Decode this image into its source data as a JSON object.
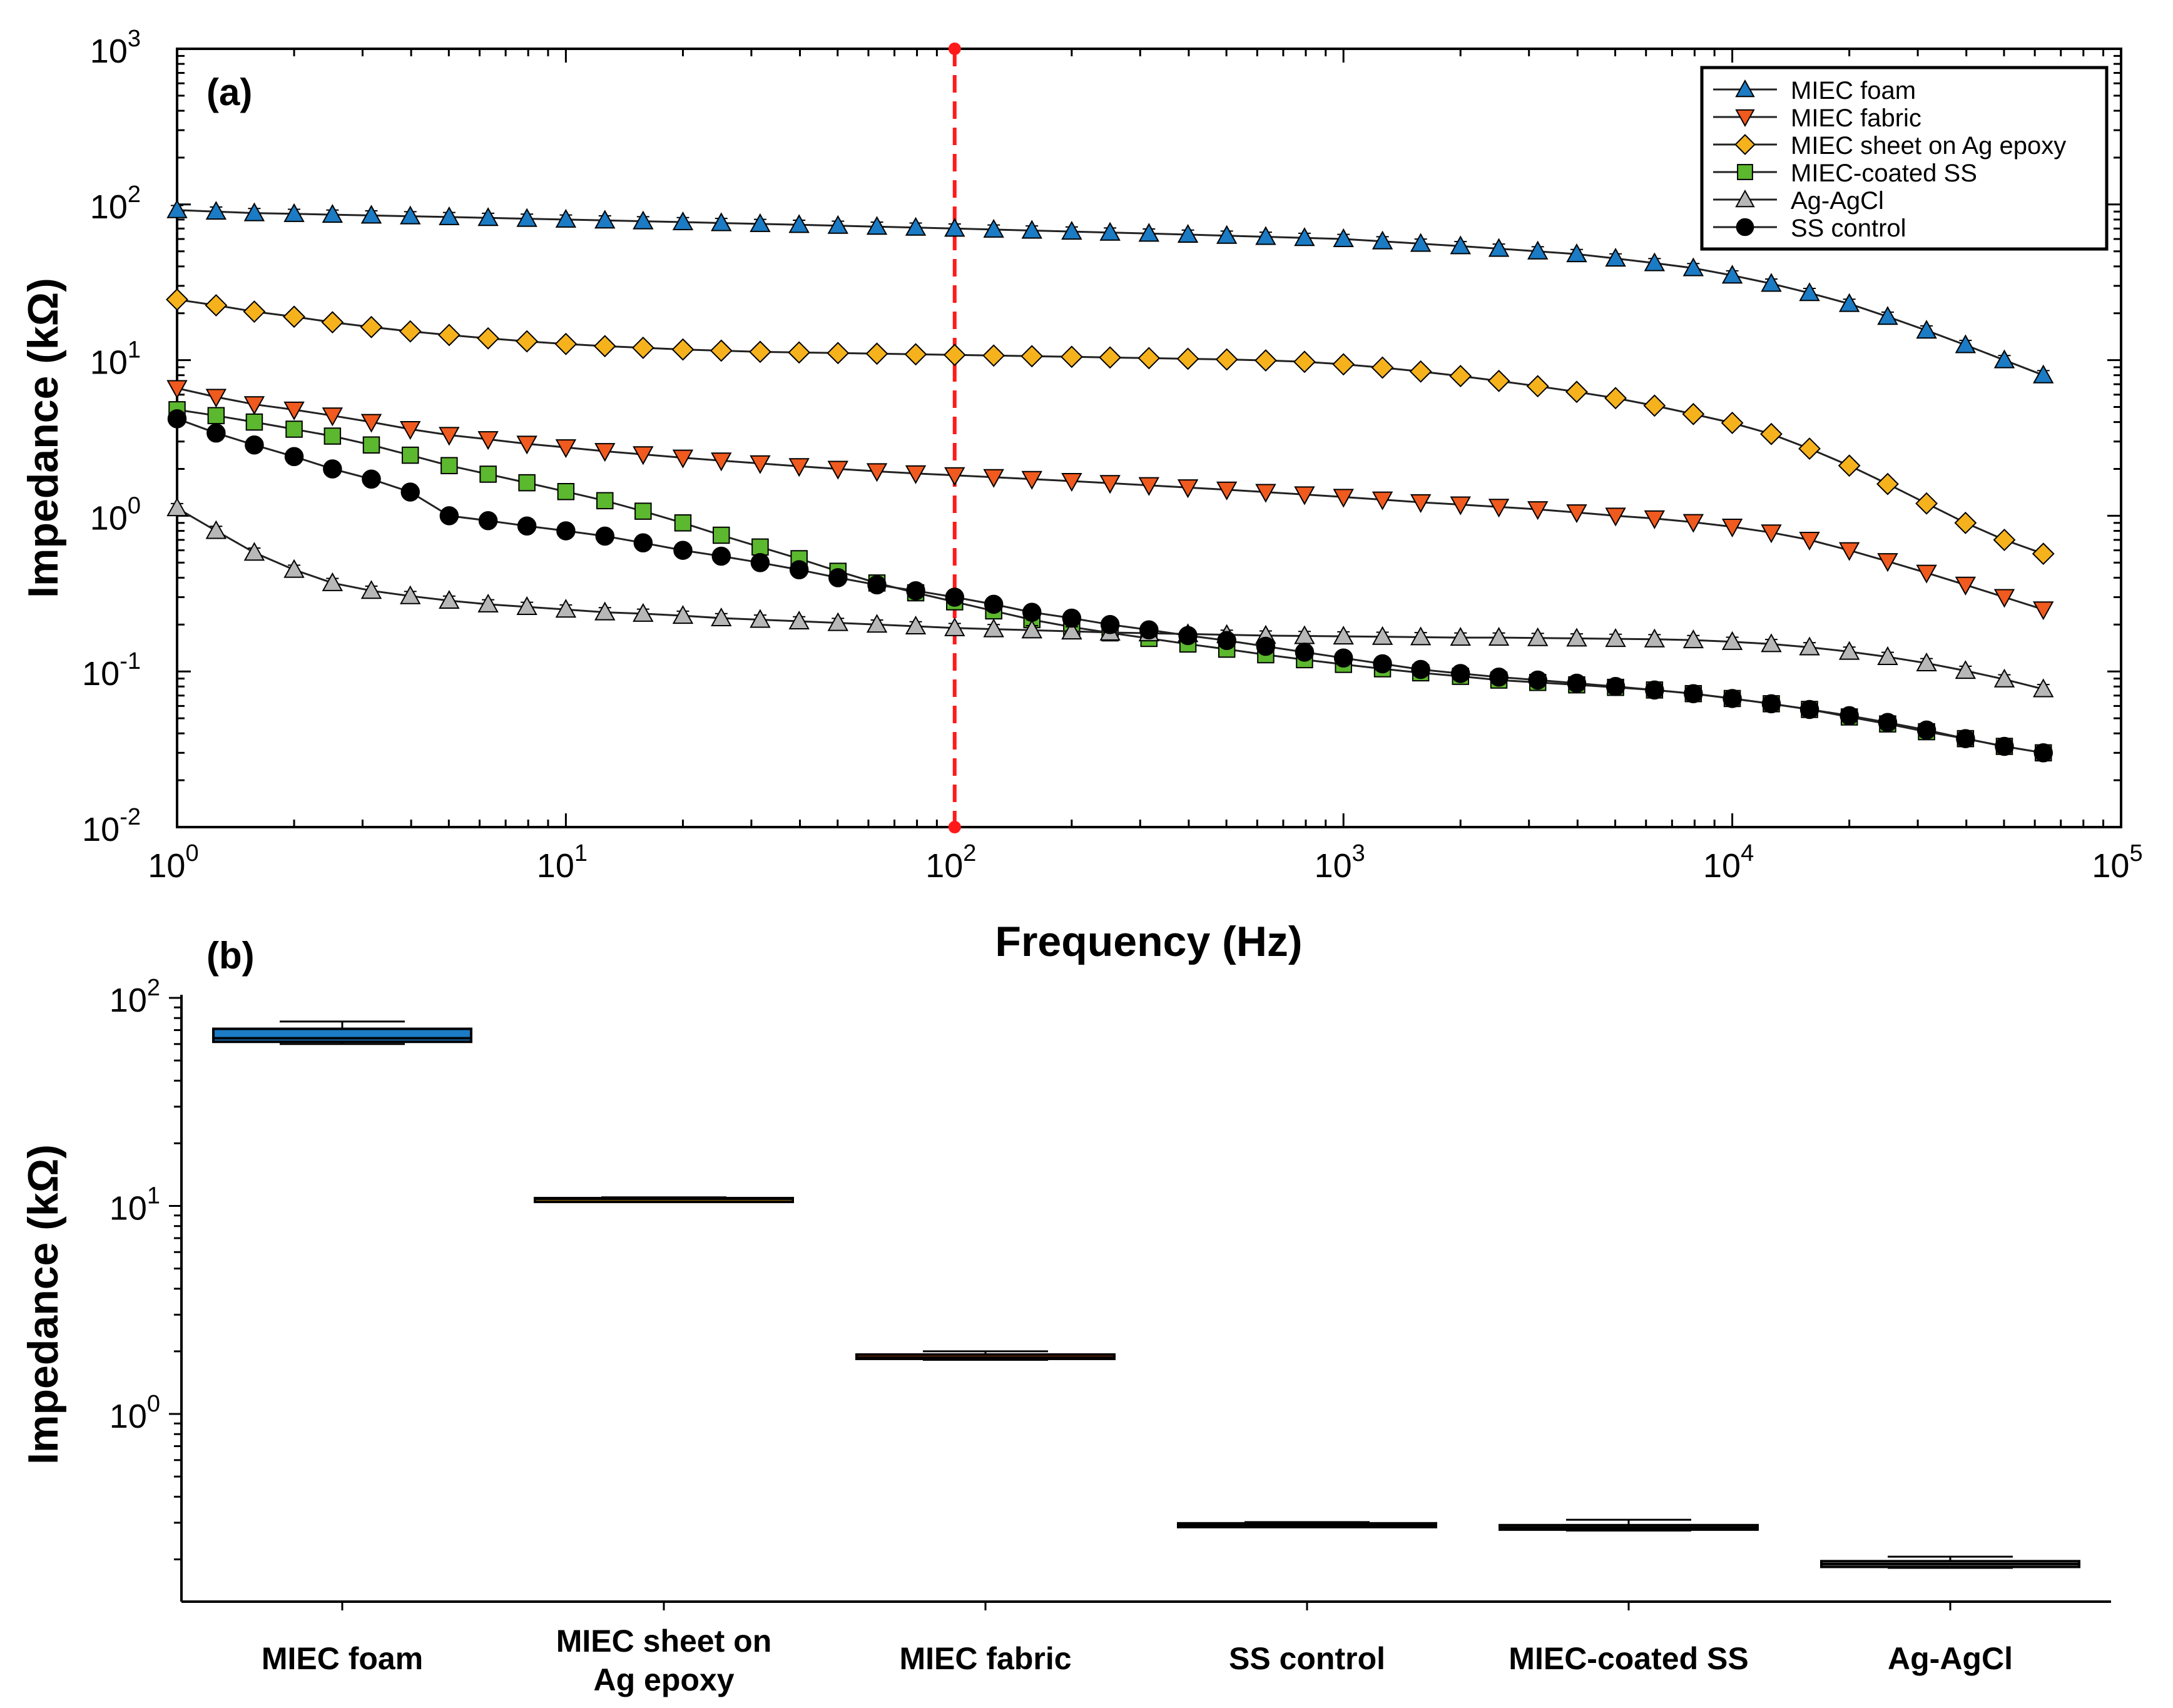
{
  "chart_data": [
    {
      "type": "line",
      "panel_label": "(a)",
      "title": "",
      "xlabel": "Frequency (Hz)",
      "ylabel": "Impedance (kΩ)",
      "xscale": "log",
      "yscale": "log",
      "xlim": [
        1,
        100000
      ],
      "ylim": [
        0.01,
        1000
      ],
      "x_ticks": [
        {
          "base": "10",
          "exp": "0"
        },
        {
          "base": "10",
          "exp": "1"
        },
        {
          "base": "10",
          "exp": "2"
        },
        {
          "base": "10",
          "exp": "3"
        },
        {
          "base": "10",
          "exp": "4"
        },
        {
          "base": "10",
          "exp": "5"
        }
      ],
      "y_ticks": [
        {
          "base": "10",
          "exp": "-2"
        },
        {
          "base": "10",
          "exp": "-1"
        },
        {
          "base": "10",
          "exp": "0"
        },
        {
          "base": "10",
          "exp": "1"
        },
        {
          "base": "10",
          "exp": "2"
        },
        {
          "base": "10",
          "exp": "3"
        }
      ],
      "marker_line_x": 100,
      "legend_position": "top-right",
      "x": [
        1.0,
        1.26,
        1.58,
        2.0,
        2.51,
        3.16,
        3.98,
        5.01,
        6.31,
        7.94,
        10,
        12.6,
        15.8,
        20,
        25.1,
        31.6,
        39.8,
        50.1,
        63.1,
        79.4,
        100,
        126,
        158,
        200,
        251,
        316,
        398,
        501,
        631,
        794,
        1000,
        1260,
        1580,
        2000,
        2510,
        3160,
        3980,
        5010,
        6310,
        7940,
        10000,
        12600,
        15800,
        20000,
        25100,
        31600,
        39800,
        50100,
        63100
      ],
      "series": [
        {
          "name": "MIEC foam",
          "color": "#1b7bc4",
          "marker": "triangle-up",
          "values": [
            92,
            90,
            88,
            87,
            86,
            85,
            84,
            83,
            82,
            81,
            80,
            79,
            78,
            77,
            76,
            75,
            74,
            73,
            72,
            71,
            70,
            69,
            68,
            67,
            66,
            65,
            64,
            63,
            62,
            61,
            60,
            58,
            56,
            54,
            52,
            50,
            48,
            45,
            42,
            39,
            35,
            31,
            27,
            23,
            19,
            15.5,
            12.5,
            10,
            8
          ]
        },
        {
          "name": "MIEC fabric",
          "color": "#f05a1e",
          "marker": "triangle-down",
          "values": [
            6.6,
            5.8,
            5.2,
            4.8,
            4.4,
            4.0,
            3.6,
            3.3,
            3.1,
            2.9,
            2.75,
            2.6,
            2.48,
            2.36,
            2.26,
            2.17,
            2.08,
            2.0,
            1.93,
            1.87,
            1.82,
            1.77,
            1.72,
            1.67,
            1.62,
            1.57,
            1.52,
            1.47,
            1.42,
            1.37,
            1.32,
            1.27,
            1.22,
            1.18,
            1.14,
            1.1,
            1.05,
            1.0,
            0.96,
            0.91,
            0.85,
            0.78,
            0.7,
            0.6,
            0.51,
            0.43,
            0.36,
            0.3,
            0.25
          ]
        },
        {
          "name": "MIEC sheet on Ag epoxy",
          "color": "#f5b21d",
          "marker": "diamond",
          "values": [
            24.5,
            22.5,
            20.5,
            19,
            17.5,
            16.3,
            15.3,
            14.5,
            13.8,
            13.2,
            12.7,
            12.3,
            12.0,
            11.7,
            11.5,
            11.3,
            11.2,
            11.1,
            11.0,
            10.9,
            10.8,
            10.7,
            10.6,
            10.5,
            10.4,
            10.3,
            10.2,
            10.1,
            9.95,
            9.75,
            9.4,
            8.95,
            8.45,
            7.9,
            7.35,
            6.8,
            6.25,
            5.7,
            5.1,
            4.5,
            3.95,
            3.35,
            2.7,
            2.1,
            1.6,
            1.2,
            0.9,
            0.7,
            0.57
          ]
        },
        {
          "name": "MIEC-coated SS",
          "color": "#5cb82e",
          "marker": "square",
          "values": [
            4.8,
            4.4,
            4.0,
            3.6,
            3.25,
            2.85,
            2.45,
            2.1,
            1.85,
            1.63,
            1.43,
            1.25,
            1.07,
            0.9,
            0.75,
            0.63,
            0.53,
            0.44,
            0.37,
            0.32,
            0.28,
            0.245,
            0.215,
            0.193,
            0.177,
            0.163,
            0.15,
            0.139,
            0.128,
            0.119,
            0.111,
            0.104,
            0.098,
            0.093,
            0.088,
            0.085,
            0.082,
            0.079,
            0.076,
            0.072,
            0.067,
            0.062,
            0.057,
            0.051,
            0.046,
            0.041,
            0.037,
            0.033,
            0.03
          ]
        },
        {
          "name": "Ag-AgCl",
          "color": "#b7b7b7",
          "marker": "triangle-up",
          "values": [
            1.12,
            0.8,
            0.58,
            0.45,
            0.37,
            0.33,
            0.305,
            0.285,
            0.27,
            0.26,
            0.25,
            0.24,
            0.235,
            0.228,
            0.22,
            0.215,
            0.21,
            0.205,
            0.2,
            0.195,
            0.19,
            0.187,
            0.184,
            0.181,
            0.178,
            0.176,
            0.174,
            0.172,
            0.17,
            0.169,
            0.168,
            0.167,
            0.166,
            0.165,
            0.165,
            0.164,
            0.163,
            0.162,
            0.161,
            0.159,
            0.155,
            0.15,
            0.143,
            0.134,
            0.124,
            0.113,
            0.101,
            0.089,
            0.077
          ]
        },
        {
          "name": "SS control",
          "color": "#000000",
          "marker": "circle",
          "values": [
            4.2,
            3.4,
            2.85,
            2.4,
            2.0,
            1.72,
            1.42,
            1.0,
            0.93,
            0.86,
            0.8,
            0.74,
            0.67,
            0.6,
            0.55,
            0.5,
            0.45,
            0.4,
            0.36,
            0.33,
            0.3,
            0.27,
            0.24,
            0.22,
            0.2,
            0.185,
            0.17,
            0.158,
            0.145,
            0.133,
            0.122,
            0.112,
            0.103,
            0.097,
            0.092,
            0.088,
            0.084,
            0.08,
            0.076,
            0.072,
            0.067,
            0.062,
            0.057,
            0.052,
            0.047,
            0.042,
            0.037,
            0.033,
            0.03
          ]
        }
      ]
    },
    {
      "type": "box",
      "panel_label": "(b)",
      "title": "",
      "xlabel": "",
      "ylabel": "Impedance (kΩ)",
      "yscale": "log",
      "ylim": [
        0.16,
        100
      ],
      "y_ticks": [
        {
          "base": "10",
          "exp": "0"
        },
        {
          "base": "10",
          "exp": "1"
        },
        {
          "base": "10",
          "exp": "2"
        }
      ],
      "categories": [
        [
          "MIEC foam"
        ],
        [
          "MIEC sheet on",
          "Ag epoxy"
        ],
        [
          "MIEC fabric"
        ],
        [
          "SS control"
        ],
        [
          "MIEC-coated SS"
        ],
        [
          "Ag-AgCl"
        ]
      ],
      "boxes": [
        {
          "name": "MIEC foam",
          "color": "#1b7bc4",
          "min": 60,
          "q1": 61.5,
          "median": 64,
          "q3": 71,
          "max": 77
        },
        {
          "name": "MIEC sheet on Ag epoxy",
          "color": "#f5b21d",
          "min": 10.6,
          "q1": 10.75,
          "median": 10.8,
          "q3": 10.9,
          "max": 11.0
        },
        {
          "name": "MIEC fabric",
          "color": "#f05a1e",
          "min": 1.82,
          "q1": 1.84,
          "median": 1.87,
          "q3": 1.93,
          "max": 2.0
        },
        {
          "name": "SS control",
          "color": "#000000",
          "min": 0.29,
          "q1": 0.292,
          "median": 0.295,
          "q3": 0.298,
          "max": 0.302
        },
        {
          "name": "MIEC-coated SS",
          "color": "#5cb82e",
          "min": 0.275,
          "q1": 0.278,
          "median": 0.284,
          "q3": 0.292,
          "max": 0.31
        },
        {
          "name": "Ag-AgCl",
          "color": "#b7b7b7",
          "min": 0.182,
          "q1": 0.184,
          "median": 0.19,
          "q3": 0.196,
          "max": 0.206
        }
      ]
    }
  ]
}
